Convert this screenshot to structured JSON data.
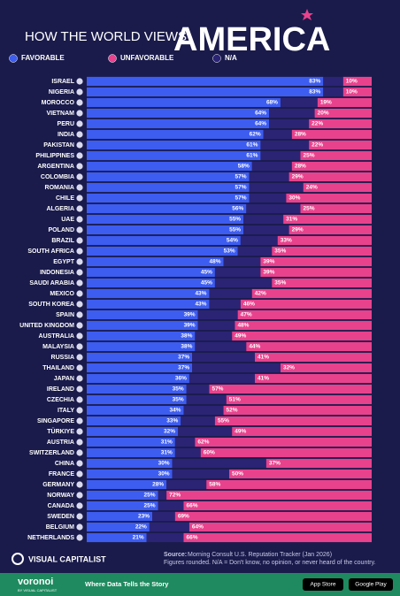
{
  "chart_data": {
    "type": "stacked-bar-100",
    "title": "HOW THE WORLD VIEWS",
    "title_highlight": "AMERICA",
    "categories": [
      "ISRAEL",
      "NIGERIA",
      "MOROCCO",
      "VIETNAM",
      "PERU",
      "INDIA",
      "PAKISTAN",
      "PHILIPPINES",
      "ARGENTINA",
      "COLOMBIA",
      "ROMANIA",
      "CHILE",
      "ALGERIA",
      "UAE",
      "POLAND",
      "BRAZIL",
      "SOUTH AFRICA",
      "EGYPT",
      "INDONESIA",
      "SAUDI ARABIA",
      "MEXICO",
      "SOUTH KOREA",
      "SPAIN",
      "UNITED KINGDOM",
      "AUSTRALIA",
      "MALAYSIA",
      "RUSSIA",
      "THAILAND",
      "JAPAN",
      "IRELAND",
      "CZECHIA",
      "ITALY",
      "SINGAPORE",
      "TÜRKIYE",
      "AUSTRIA",
      "SWITZERLAND",
      "CHINA",
      "FRANCE",
      "GERMANY",
      "NORWAY",
      "CANADA",
      "SWEDEN",
      "BELGIUM",
      "NETHERLANDS"
    ],
    "xlim": [
      0,
      100
    ],
    "series": [
      {
        "name": "FAVORABLE",
        "color": "#3d5cf0",
        "values": [
          83,
          83,
          68,
          64,
          64,
          62,
          61,
          61,
          58,
          57,
          57,
          57,
          56,
          55,
          55,
          54,
          53,
          48,
          45,
          45,
          43,
          43,
          39,
          39,
          38,
          38,
          37,
          37,
          36,
          35,
          35,
          34,
          33,
          32,
          31,
          31,
          30,
          30,
          28,
          25,
          25,
          23,
          22,
          21
        ],
        "value_labels": [
          "83%",
          "83%",
          "68%",
          "64%",
          "64%",
          "62%",
          "61%",
          "61%",
          "58%",
          "57%",
          "57%",
          "57%",
          "56%",
          "55%",
          "55%",
          "54%",
          "53%",
          "48%",
          "45%",
          "45%",
          "43%",
          "43%",
          "39%",
          "39%",
          "38%",
          "38%",
          "37%",
          "37%",
          "36%",
          "35%",
          "35%",
          "34%",
          "33%",
          "32%",
          "31%",
          "31%",
          "30%",
          "30%",
          "28%",
          "25%",
          "25%",
          "23%",
          "22%",
          "21%"
        ]
      },
      {
        "name": "N/A",
        "color": "#2b2475",
        "values": [
          7,
          7,
          13,
          16,
          14,
          10,
          17,
          14,
          14,
          14,
          19,
          13,
          19,
          14,
          16,
          13,
          12,
          13,
          16,
          20,
          15,
          11,
          14,
          13,
          13,
          18,
          22,
          31,
          23,
          8,
          14,
          14,
          12,
          19,
          7,
          9,
          33,
          20,
          14,
          3,
          9,
          8,
          14,
          13
        ]
      },
      {
        "name": "UNFAVORABLE",
        "color": "#e8428d",
        "values": [
          10,
          10,
          19,
          20,
          22,
          28,
          22,
          25,
          28,
          29,
          24,
          30,
          25,
          31,
          29,
          33,
          35,
          39,
          39,
          35,
          42,
          46,
          47,
          48,
          49,
          44,
          41,
          32,
          41,
          57,
          51,
          52,
          55,
          49,
          62,
          60,
          37,
          50,
          58,
          72,
          66,
          69,
          64,
          66
        ],
        "value_labels": [
          "10%",
          "10%",
          "19%",
          "20%",
          "22%",
          "28%",
          "22%",
          "25%",
          "28%",
          "29%",
          "24%",
          "30%",
          "25%",
          "31%",
          "29%",
          "33%",
          "35%",
          "39%",
          "39%",
          "35%",
          "42%",
          "46%",
          "47%",
          "48%",
          "49%",
          "44%",
          "41%",
          "32%",
          "41%",
          "57%",
          "51%",
          "52%",
          "55%",
          "49%",
          "62%",
          "60%",
          "37%",
          "50%",
          "58%",
          "72%",
          "66%",
          "69%",
          "64%",
          "66%"
        ]
      }
    ],
    "source_label": "Source:",
    "source": "Morning Consult U.S. Reputation Tracker (Jan 2026)",
    "note": "Figures rounded. N/A = Don't know, no opinion, or never heard of the country."
  },
  "footer": {
    "brand": "VISUAL CAPITALIST",
    "logo": "voronoi",
    "logo_sub": "BY VISUAL CAPITALIST",
    "tagline": "Where Data Tells the Story",
    "app_store": "App Store",
    "google_play": "Google Play"
  }
}
